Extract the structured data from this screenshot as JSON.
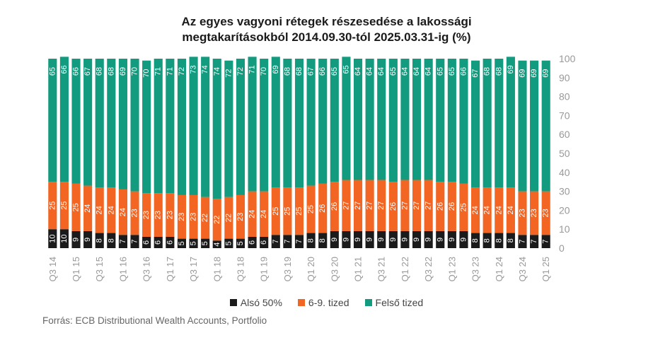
{
  "chart_data": {
    "type": "bar",
    "stacked": true,
    "title": "Az egyes vagyoni rétegek részesedése a lakossági megtakarításokból 2014.09.30-tól  2025.03.31-ig  (%)",
    "title_lines": [
      "Az egyes vagyoni rétegek részesedése a lakossági",
      "megtakarításokból 2014.09.30-tól  2025.03.31-ig  (%)"
    ],
    "categories": [
      "Q3 14",
      "Q4 14",
      "Q1 15",
      "Q2 15",
      "Q3 15",
      "Q4 15",
      "Q1 16",
      "Q2 16",
      "Q3 16",
      "Q4 16",
      "Q1 17",
      "Q2 17",
      "Q3 17",
      "Q4 17",
      "Q1 18",
      "Q2 18",
      "Q3 18",
      "Q4 18",
      "Q1 19",
      "Q2 19",
      "Q3 19",
      "Q4 19",
      "Q1 20",
      "Q2 20",
      "Q3 20",
      "Q4 20",
      "Q1 21",
      "Q2 21",
      "Q3 21",
      "Q4 21",
      "Q1 22",
      "Q2 22",
      "Q3 22",
      "Q4 22",
      "Q1 23",
      "Q2 23",
      "Q3 23",
      "Q4 23",
      "Q1 24",
      "Q2 24",
      "Q3 24",
      "Q4 24",
      "Q1 25"
    ],
    "shown_tick_labels": [
      "Q3 14",
      "Q1 15",
      "Q3 15",
      "Q1 16",
      "Q3 16",
      "Q1 17",
      "Q3 17",
      "Q1 18",
      "Q3 18",
      "Q1 19",
      "Q3 19",
      "Q1 20",
      "Q3 20",
      "Q1 21",
      "Q3 21",
      "Q1 22",
      "Q3 22",
      "Q1 23",
      "Q3 23",
      "Q1 24",
      "Q3 24",
      "Q1 25"
    ],
    "series": [
      {
        "name": "Alsó 50%",
        "color": "#1b1b1b",
        "values": [
          10,
          10,
          9,
          9,
          8,
          8,
          7,
          7,
          6,
          6,
          6,
          5,
          5,
          5,
          4,
          5,
          5,
          6,
          6,
          7,
          7,
          7,
          8,
          8,
          9,
          9,
          9,
          9,
          9,
          9,
          9,
          9,
          9,
          9,
          9,
          9,
          8,
          8,
          8,
          8,
          7,
          7,
          7
        ]
      },
      {
        "name": "6-9. tized",
        "color": "#f26522",
        "values": [
          25,
          25,
          25,
          24,
          24,
          24,
          24,
          23,
          23,
          23,
          23,
          23,
          23,
          22,
          22,
          22,
          23,
          24,
          24,
          25,
          25,
          25,
          25,
          26,
          26,
          27,
          27,
          27,
          27,
          26,
          27,
          27,
          27,
          26,
          26,
          25,
          24,
          24,
          24,
          24,
          23,
          23,
          23
        ]
      },
      {
        "name": "Felső tized",
        "color": "#139b7f",
        "values": [
          65,
          66,
          66,
          67,
          68,
          68,
          69,
          70,
          70,
          71,
          71,
          72,
          73,
          74,
          74,
          72,
          72,
          71,
          70,
          69,
          68,
          68,
          67,
          66,
          65,
          65,
          64,
          64,
          64,
          65,
          64,
          64,
          64,
          65,
          65,
          66,
          67,
          68,
          68,
          69,
          69,
          69,
          69
        ]
      }
    ],
    "ylim": [
      0,
      100
    ],
    "yticks": [
      0,
      10,
      20,
      30,
      40,
      50,
      60,
      70,
      80,
      90,
      100
    ],
    "axis_side": "right",
    "legend_position": "bottom",
    "grid": false
  },
  "source": "Forrás: ECB Distributional Wealth Accounts, Portfolio"
}
